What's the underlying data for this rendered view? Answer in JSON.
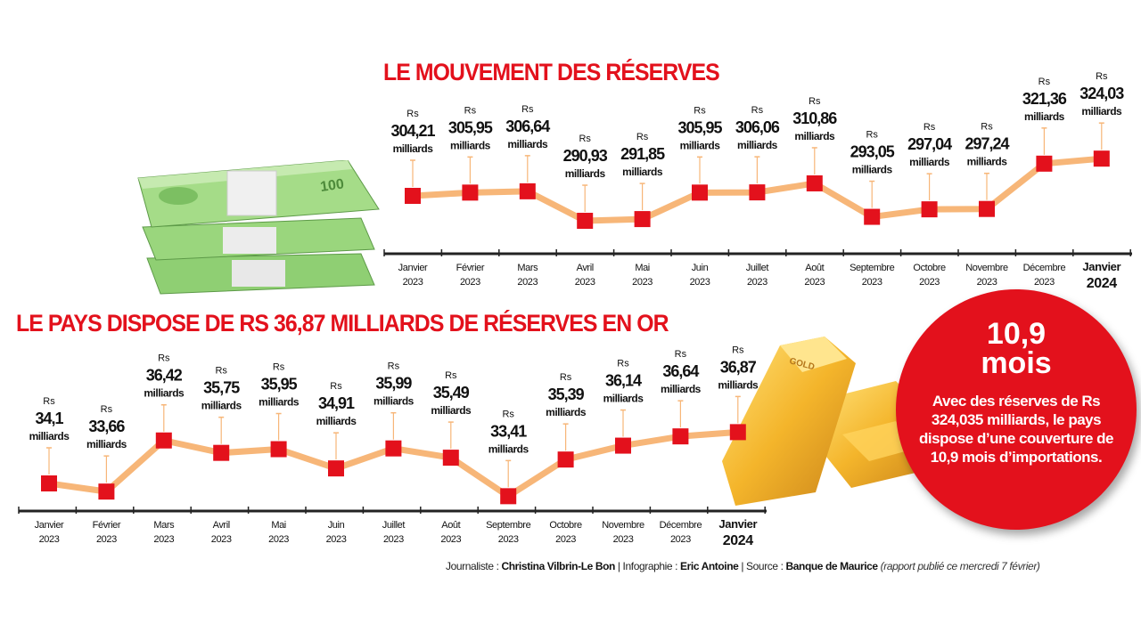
{
  "chart_data": [
    {
      "type": "line",
      "title": "LE MOUVEMENT DES RÉSERVES",
      "categories": [
        {
          "month": "Janvier",
          "year": "2023"
        },
        {
          "month": "Février",
          "year": "2023"
        },
        {
          "month": "Mars",
          "year": "2023"
        },
        {
          "month": "Avril",
          "year": "2023"
        },
        {
          "month": "Mai",
          "year": "2023"
        },
        {
          "month": "Juin",
          "year": "2023"
        },
        {
          "month": "Juillet",
          "year": "2023"
        },
        {
          "month": "Août",
          "year": "2023"
        },
        {
          "month": "Septembre",
          "year": "2023"
        },
        {
          "month": "Octobre",
          "year": "2023"
        },
        {
          "month": "Novembre",
          "year": "2023"
        },
        {
          "month": "Décembre",
          "year": "2023"
        },
        {
          "month": "Janvier",
          "year": "2024"
        }
      ],
      "values": [
        304.21,
        305.95,
        306.64,
        290.93,
        291.85,
        305.95,
        306.06,
        310.86,
        293.05,
        297.04,
        297.24,
        321.36,
        324.03
      ],
      "value_labels": [
        "304,21",
        "305,95",
        "306,64",
        "290,93",
        "291,85",
        "305,95",
        "306,06",
        "310,86",
        "293,05",
        "297,04",
        "297,24",
        "321,36",
        "324,03"
      ],
      "prefix": "Rs",
      "unit": "milliards",
      "grid": false,
      "line_color": "#f7b678",
      "marker_color": "#e3111c"
    },
    {
      "type": "line",
      "title": "LE PAYS DISPOSE DE RS 36,87 MILLIARDS DE RÉSERVES EN OR",
      "categories": [
        {
          "month": "Janvier",
          "year": "2023"
        },
        {
          "month": "Février",
          "year": "2023"
        },
        {
          "month": "Mars",
          "year": "2023"
        },
        {
          "month": "Avril",
          "year": "2023"
        },
        {
          "month": "Mai",
          "year": "2023"
        },
        {
          "month": "Juin",
          "year": "2023"
        },
        {
          "month": "Juillet",
          "year": "2023"
        },
        {
          "month": "Août",
          "year": "2023"
        },
        {
          "month": "Septembre",
          "year": "2023"
        },
        {
          "month": "Octobre",
          "year": "2023"
        },
        {
          "month": "Novembre",
          "year": "2023"
        },
        {
          "month": "Décembre",
          "year": "2023"
        },
        {
          "month": "Janvier",
          "year": "2024"
        }
      ],
      "values": [
        34.1,
        33.66,
        36.42,
        35.75,
        35.95,
        34.91,
        35.99,
        35.49,
        33.41,
        35.39,
        36.14,
        36.64,
        36.87
      ],
      "value_labels": [
        "34,1",
        "33,66",
        "36,42",
        "35,75",
        "35,95",
        "34,91",
        "35,99",
        "35,49",
        "33,41",
        "35,39",
        "36,14",
        "36,64",
        "36,87"
      ],
      "prefix": "Rs",
      "unit": "milliards",
      "grid": false,
      "line_color": "#f7b678",
      "marker_color": "#e3111c"
    }
  ],
  "callout": {
    "number": "10,9",
    "unit": "mois",
    "text": "Avec des réserves de Rs 324,035 milliards, le pays dispose d’une couverture de 10,9 mois d’importations.",
    "color": "#e3111c"
  },
  "credits": {
    "journalist_label": "Journaliste : ",
    "journalist": "Christina Vilbrin-Le Bon",
    "infographic_label": " | Infographie : ",
    "infographic": "Eric Antoine",
    "source_label": " | Source : ",
    "source": "Banque de Maurice",
    "note": " (rapport publié ce mercredi 7 février)"
  },
  "illustrations": [
    "banknote-stack-icon",
    "gold-bars-icon"
  ]
}
